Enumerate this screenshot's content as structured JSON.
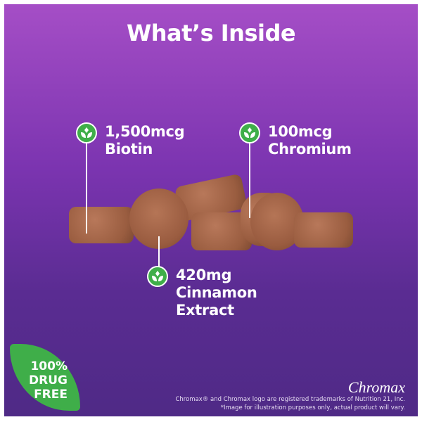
{
  "title": "What’s Inside",
  "ingredients": [
    {
      "line1": "1,500mcg",
      "line2": "Biotin",
      "icon": "leaf-sprout-icon"
    },
    {
      "line1": "100mcg",
      "line2": "Chromium",
      "icon": "leaf-sprout-icon"
    },
    {
      "line1": "420mg",
      "line2": "Cinnamon",
      "line3": "Extract",
      "icon": "leaf-sprout-icon"
    }
  ],
  "badge": {
    "line1": "100%",
    "line2": "DRUG",
    "line3": "FREE",
    "color": "#3fae49"
  },
  "brand": "Chromax",
  "legal": {
    "line1": "Chromax® and Chromax logo are registered trademarks of Nutrition 21, Inc.",
    "line2": "*Image for illustration purposes only, actual product will vary."
  },
  "colors": {
    "background_top": "#a54ec6",
    "background_bottom": "#4f2a86",
    "accent": "#3fae49"
  }
}
